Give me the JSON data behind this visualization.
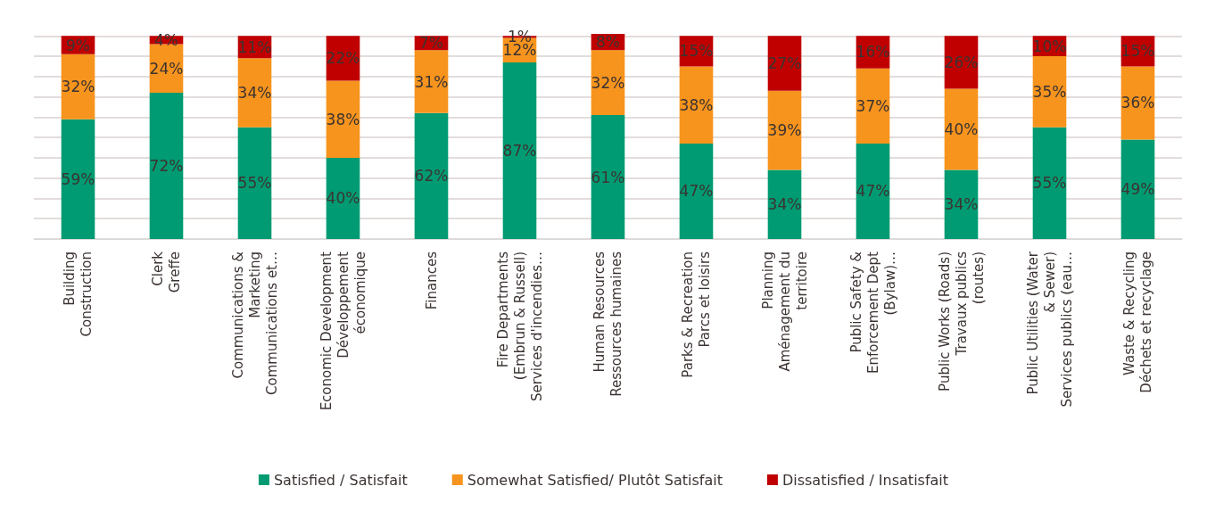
{
  "chart_data": {
    "type": "bar",
    "stacked": true,
    "categories": [
      "Building\nConstruction",
      "Clerk\nGreffe",
      "Communications &\nMarketing\nCommunications et…",
      "Economic Development\nDéveloppement\néconomique",
      "Finances",
      "Fire Departments\n(Embrun & Russell)\nServices d'incendies…",
      "Human Resources\nRessources humaines",
      "Parks & Recreation\nParcs et loisirs",
      "Planning\nAménagement du\nterritoire",
      "Public Safety &\nEnforcement Dept\n(Bylaw)…",
      "Public Works (Roads)\nTravaux publics\n(routes)",
      "Public Utilities (Water\n& Sewer)\nServices publics (eau…",
      "Waste & Recycling\nDéchets et recyclage"
    ],
    "series": [
      {
        "name": "Satisfied / Satisfait",
        "color": "#009b72",
        "values": [
          59,
          72,
          55,
          40,
          62,
          87,
          61,
          47,
          34,
          47,
          34,
          55,
          49
        ],
        "value_labels": [
          "59%",
          "72%",
          "55%",
          "40%",
          "62%",
          "87%",
          "61%",
          "47%",
          "34%",
          "47%",
          "34%",
          "55%",
          "49%"
        ]
      },
      {
        "name": "Somewhat Satisfied/ Plutôt Satisfait",
        "color": "#f7941d",
        "values": [
          32,
          24,
          34,
          38,
          31,
          12,
          32,
          38,
          39,
          37,
          40,
          35,
          36
        ],
        "value_labels": [
          "32%",
          "24%",
          "34%",
          "38%",
          "31%",
          "12%",
          "32%",
          "38%",
          "39%",
          "37%",
          "40%",
          "35%",
          "36%"
        ]
      },
      {
        "name": "Dissatisfied / Insatisfait",
        "color": "#c00000",
        "values": [
          9,
          4,
          11,
          22,
          7,
          1,
          8,
          15,
          27,
          16,
          26,
          10,
          15
        ],
        "value_labels": [
          "9%",
          "4%",
          "11%",
          "22%",
          "7%",
          "1%",
          "8%",
          "15%",
          "27%",
          "16%",
          "26%",
          "10%",
          "15%"
        ]
      }
    ],
    "ylim": [
      0,
      101
    ],
    "yticks": [
      {
        "value": 0,
        "label": null
      },
      {
        "value": 10,
        "label": null
      },
      {
        "value": 20,
        "label": null
      },
      {
        "value": 30,
        "label": null
      },
      {
        "value": 40,
        "label": null
      },
      {
        "value": 50,
        "label": null
      },
      {
        "value": 60,
        "label": null
      },
      {
        "value": 70,
        "label": null
      },
      {
        "value": 80,
        "label": null
      },
      {
        "value": 90,
        "label": null
      },
      {
        "value": 100,
        "label": null
      }
    ],
    "grid": true,
    "legend": "bottom",
    "tick_labels": "x"
  }
}
